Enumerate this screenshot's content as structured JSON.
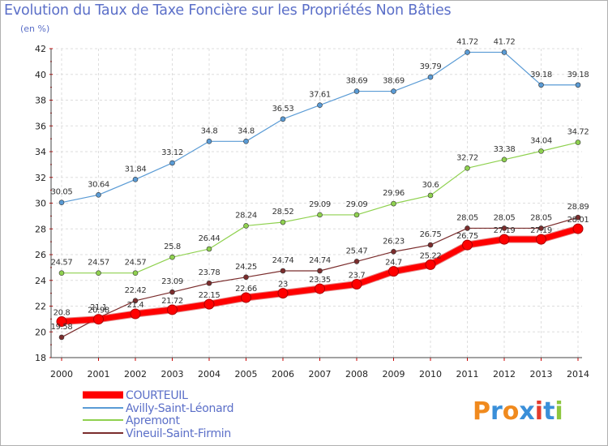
{
  "chart_data": {
    "type": "line",
    "title": "Evolution du Taux de Taxe Foncière sur les Propriétés Non Bâties",
    "subtitle": "(en %)",
    "x": [
      "2000",
      "2001",
      "2002",
      "2003",
      "2004",
      "2005",
      "2006",
      "2007",
      "2008",
      "2009",
      "2010",
      "2011",
      "2012",
      "2013",
      "2014"
    ],
    "ylim": [
      18,
      42
    ],
    "yticks": [
      "18",
      "20",
      "22",
      "24",
      "26",
      "28",
      "30",
      "32",
      "34",
      "36",
      "38",
      "40",
      "42"
    ],
    "grid": true,
    "legend_position": "bottom-left",
    "series": [
      {
        "name": "COURTEUIL",
        "color": "#ff0000",
        "values": [
          20.8,
          20.98,
          21.4,
          21.72,
          22.15,
          22.66,
          23,
          23.35,
          23.7,
          24.7,
          25.22,
          26.75,
          27.19,
          27.19,
          28.01
        ],
        "labels": [
          "20.8",
          "20.98",
          "21.4",
          "21.72",
          "22.15",
          "22.66",
          "23",
          "23.35",
          "23.7",
          "24.7",
          "25.22",
          "26.75",
          "27.19",
          "27.19",
          "28.01"
        ]
      },
      {
        "name": "Avilly-Saint-Léonard",
        "color": "#5a9bd5",
        "values": [
          30.05,
          30.64,
          31.84,
          33.12,
          34.8,
          34.8,
          36.53,
          37.61,
          38.69,
          38.69,
          39.79,
          41.72,
          41.72,
          39.18,
          39.18
        ],
        "labels": [
          "30.05",
          "30.64",
          "31.84",
          "33.12",
          "34.8",
          "34.8",
          "36.53",
          "37.61",
          "38.69",
          "38.69",
          "39.79",
          "41.72",
          "41.72",
          "39.18",
          "39.18"
        ]
      },
      {
        "name": "Apremont",
        "color": "#8fd14f",
        "values": [
          24.57,
          24.57,
          24.57,
          25.8,
          26.44,
          28.24,
          28.52,
          29.09,
          29.09,
          29.96,
          30.6,
          32.72,
          33.38,
          34.04,
          34.72
        ],
        "labels": [
          "24.57",
          "24.57",
          "24.57",
          "25.8",
          "26.44",
          "28.24",
          "28.52",
          "29.09",
          "29.09",
          "29.96",
          "30.6",
          "32.72",
          "33.38",
          "34.04",
          "34.72"
        ]
      },
      {
        "name": "Vineuil-Saint-Firmin",
        "color": "#7b2d2d",
        "values": [
          19.58,
          21.1,
          22.42,
          23.09,
          23.78,
          24.25,
          24.74,
          24.74,
          25.47,
          26.23,
          26.75,
          28.05,
          28.05,
          28.05,
          28.89
        ],
        "labels": [
          "19.58",
          "21.1",
          "22.42",
          "23.09",
          "23.78",
          "24.25",
          "24.74",
          "24.74",
          "25.47",
          "26.23",
          "26.75",
          "28.05",
          "28.05",
          "28.05",
          "28.89"
        ]
      }
    ]
  },
  "logo": {
    "text": "Proxiti",
    "colors": [
      "#f08a1e",
      "#3a8fd9",
      "#f08a1e",
      "#3a8fd9",
      "#e33b2e",
      "#3a8fd9",
      "#8dc63f"
    ]
  }
}
